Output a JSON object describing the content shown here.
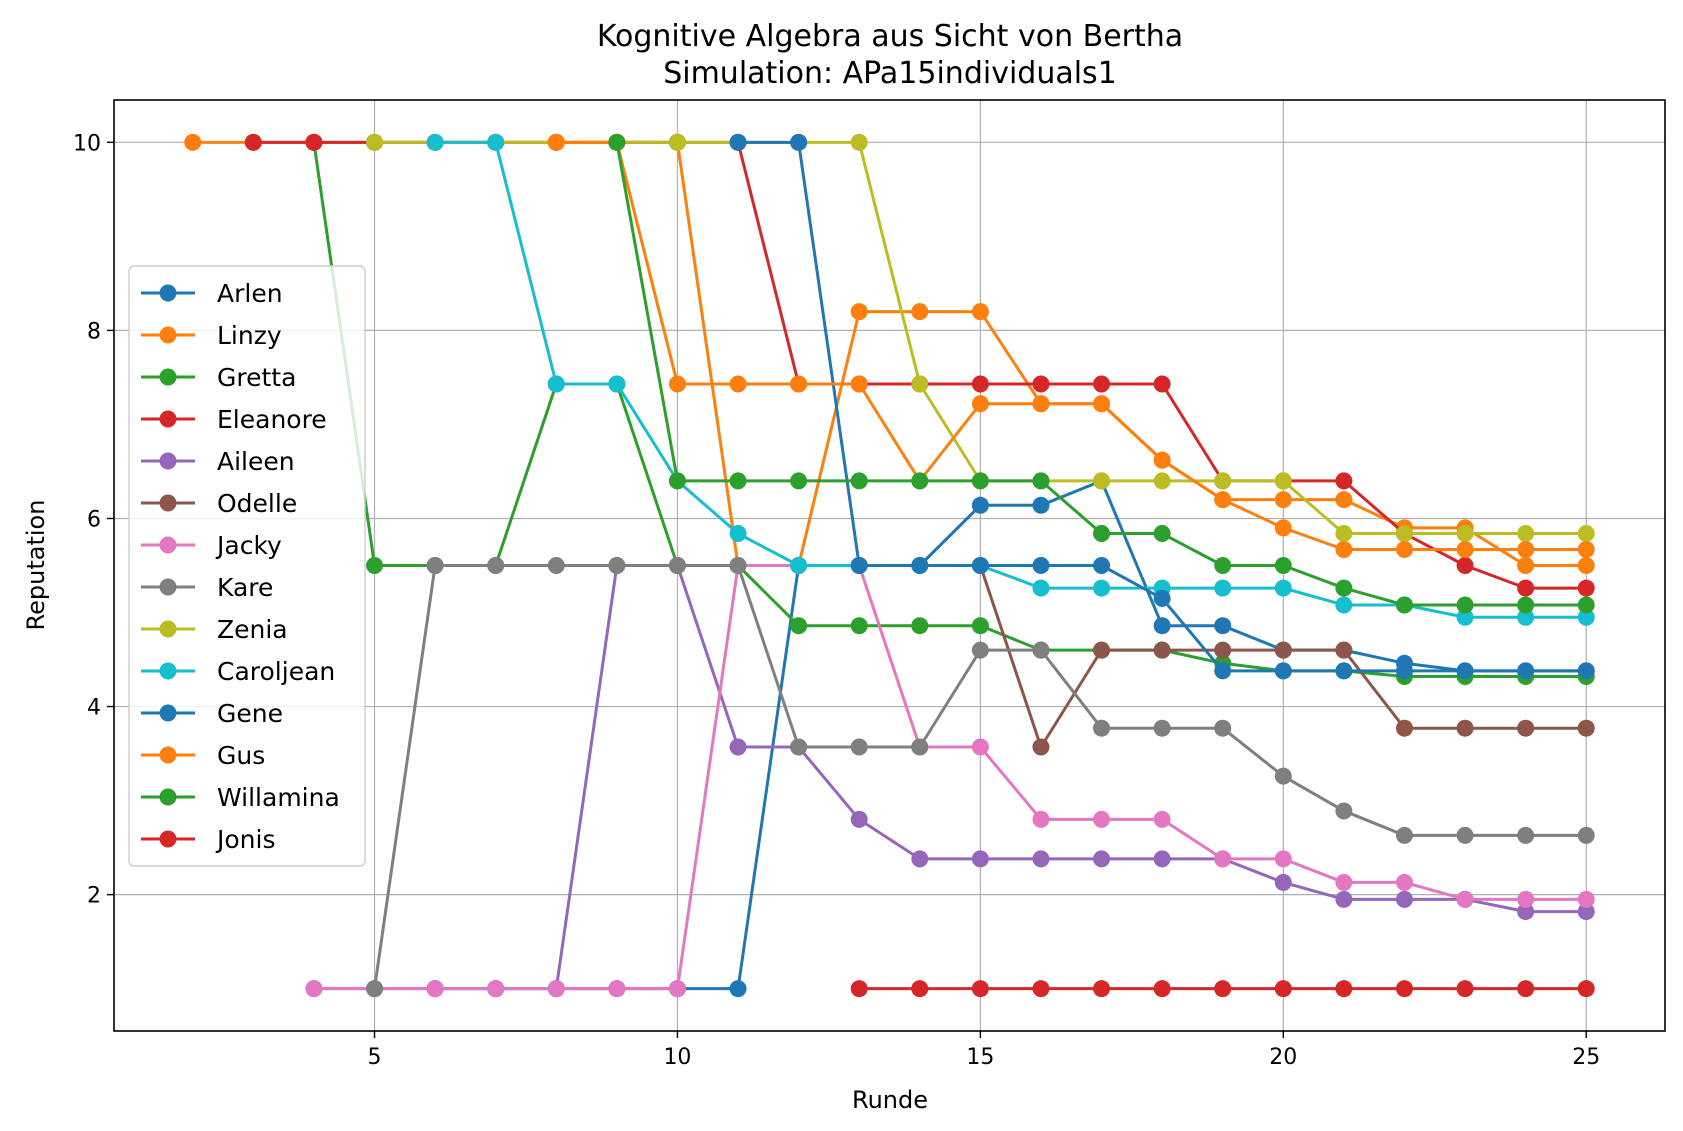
{
  "chart_data": {
    "type": "line",
    "title": "Kognitive Algebra aus Sicht von Bertha",
    "subtitle": "Simulation: APa15individuals1",
    "xlabel": "Runde",
    "ylabel": "Reputation",
    "xlim": [
      0.7,
      26.3
    ],
    "ylim": [
      0.55,
      10.45
    ],
    "xticks": [
      5,
      10,
      15,
      20,
      25
    ],
    "yticks": [
      2,
      4,
      6,
      8,
      10
    ],
    "grid": true,
    "legend_position": "center-left",
    "series": [
      {
        "name": "Arlen",
        "color": "#1f77b4",
        "points": [
          [
            6,
            1
          ],
          [
            7,
            1
          ],
          [
            8,
            1
          ],
          [
            9,
            1
          ],
          [
            10,
            1
          ],
          [
            11,
            1
          ],
          [
            12,
            5.5
          ],
          [
            13,
            5.5
          ],
          [
            14,
            5.5
          ],
          [
            15,
            6.14
          ],
          [
            16,
            6.14
          ],
          [
            17,
            6.4
          ],
          [
            18,
            4.86
          ],
          [
            19,
            4.86
          ],
          [
            20,
            4.6
          ],
          [
            21,
            4.6
          ],
          [
            22,
            4.46
          ],
          [
            23,
            4.38
          ],
          [
            24,
            4.38
          ],
          [
            25,
            4.38
          ]
        ]
      },
      {
        "name": "Linzy",
        "color": "#ff7f0e",
        "points": [
          [
            2,
            10
          ],
          [
            3,
            10
          ],
          [
            4,
            10
          ],
          [
            5,
            10
          ],
          [
            6,
            10
          ],
          [
            7,
            10
          ],
          [
            8,
            10
          ],
          [
            9,
            10
          ],
          [
            10,
            10
          ],
          [
            11,
            5.5
          ],
          [
            12,
            5.5
          ],
          [
            13,
            8.2
          ],
          [
            14,
            8.2
          ],
          [
            15,
            8.2
          ],
          [
            16,
            7.22
          ],
          [
            17,
            7.22
          ],
          [
            18,
            6.62
          ],
          [
            19,
            6.2
          ],
          [
            20,
            6.2
          ],
          [
            21,
            6.2
          ],
          [
            22,
            5.9
          ],
          [
            23,
            5.9
          ],
          [
            24,
            5.5
          ],
          [
            25,
            5.5
          ]
        ]
      },
      {
        "name": "Gretta",
        "color": "#2ca02c",
        "points": [
          [
            4,
            10
          ],
          [
            5,
            5.5
          ],
          [
            6,
            5.5
          ],
          [
            7,
            5.5
          ],
          [
            8,
            7.43
          ],
          [
            9,
            7.43
          ],
          [
            10,
            5.5
          ],
          [
            11,
            5.5
          ],
          [
            12,
            4.86
          ],
          [
            13,
            4.86
          ],
          [
            14,
            4.86
          ],
          [
            15,
            4.86
          ],
          [
            16,
            4.6
          ],
          [
            17,
            4.6
          ],
          [
            18,
            4.6
          ],
          [
            19,
            4.46
          ],
          [
            20,
            4.38
          ],
          [
            21,
            4.38
          ],
          [
            22,
            4.32
          ],
          [
            23,
            4.32
          ],
          [
            24,
            4.32
          ],
          [
            25,
            4.32
          ]
        ]
      },
      {
        "name": "Eleanore",
        "color": "#d62728",
        "points": [
          [
            3,
            10
          ],
          [
            4,
            10
          ],
          [
            5,
            10
          ],
          [
            6,
            10
          ],
          [
            7,
            10
          ],
          [
            8,
            10
          ],
          [
            9,
            10
          ],
          [
            10,
            10
          ],
          [
            11,
            10
          ],
          [
            12,
            7.43
          ],
          [
            13,
            7.43
          ],
          [
            14,
            7.43
          ],
          [
            15,
            7.43
          ],
          [
            16,
            7.43
          ],
          [
            17,
            7.43
          ],
          [
            18,
            7.43
          ],
          [
            19,
            6.4
          ],
          [
            20,
            6.4
          ],
          [
            21,
            6.4
          ],
          [
            22,
            5.84
          ],
          [
            23,
            5.5
          ],
          [
            24,
            5.26
          ],
          [
            25,
            5.26
          ]
        ]
      },
      {
        "name": "Aileen",
        "color": "#9467bd",
        "points": [
          [
            4,
            1
          ],
          [
            5,
            1
          ],
          [
            6,
            1
          ],
          [
            7,
            1
          ],
          [
            8,
            1
          ],
          [
            9,
            5.5
          ],
          [
            10,
            5.5
          ],
          [
            11,
            3.57
          ],
          [
            12,
            3.57
          ],
          [
            13,
            2.8
          ],
          [
            14,
            2.38
          ],
          [
            15,
            2.38
          ],
          [
            16,
            2.38
          ],
          [
            17,
            2.38
          ],
          [
            18,
            2.38
          ],
          [
            19,
            2.38
          ],
          [
            20,
            2.13
          ],
          [
            21,
            1.95
          ],
          [
            22,
            1.95
          ],
          [
            23,
            1.95
          ],
          [
            24,
            1.82
          ],
          [
            25,
            1.82
          ]
        ]
      },
      {
        "name": "Odelle",
        "color": "#8c564b",
        "points": [
          [
            15,
            5.5
          ],
          [
            16,
            3.57
          ],
          [
            17,
            4.6
          ],
          [
            18,
            4.6
          ],
          [
            19,
            4.6
          ],
          [
            20,
            4.6
          ],
          [
            21,
            4.6
          ],
          [
            22,
            3.77
          ],
          [
            23,
            3.77
          ],
          [
            24,
            3.77
          ],
          [
            25,
            3.77
          ]
        ]
      },
      {
        "name": "Jacky",
        "color": "#e377c2",
        "points": [
          [
            4,
            1
          ],
          [
            5,
            1
          ],
          [
            6,
            1
          ],
          [
            7,
            1
          ],
          [
            8,
            1
          ],
          [
            9,
            1
          ],
          [
            10,
            1
          ],
          [
            11,
            5.5
          ],
          [
            12,
            5.5
          ],
          [
            13,
            5.5
          ],
          [
            14,
            3.57
          ],
          [
            15,
            3.57
          ],
          [
            16,
            2.8
          ],
          [
            17,
            2.8
          ],
          [
            18,
            2.8
          ],
          [
            19,
            2.38
          ],
          [
            20,
            2.38
          ],
          [
            21,
            2.13
          ],
          [
            22,
            2.13
          ],
          [
            23,
            1.95
          ],
          [
            24,
            1.95
          ],
          [
            25,
            1.95
          ]
        ]
      },
      {
        "name": "Kare",
        "color": "#7f7f7f",
        "points": [
          [
            5,
            1
          ],
          [
            6,
            5.5
          ],
          [
            7,
            5.5
          ],
          [
            8,
            5.5
          ],
          [
            9,
            5.5
          ],
          [
            10,
            5.5
          ],
          [
            11,
            5.5
          ],
          [
            12,
            3.57
          ],
          [
            13,
            3.57
          ],
          [
            14,
            3.57
          ],
          [
            15,
            4.6
          ],
          [
            16,
            4.6
          ],
          [
            17,
            3.77
          ],
          [
            18,
            3.77
          ],
          [
            19,
            3.77
          ],
          [
            20,
            3.26
          ],
          [
            21,
            2.89
          ],
          [
            22,
            2.63
          ],
          [
            23,
            2.63
          ],
          [
            24,
            2.63
          ],
          [
            25,
            2.63
          ]
        ]
      },
      {
        "name": "Zenia",
        "color": "#bcbd22",
        "points": [
          [
            5,
            10
          ],
          [
            6,
            10
          ],
          [
            7,
            10
          ],
          [
            8,
            10
          ],
          [
            9,
            10
          ],
          [
            10,
            10
          ],
          [
            11,
            10
          ],
          [
            12,
            10
          ],
          [
            13,
            10
          ],
          [
            14,
            7.43
          ],
          [
            15,
            6.4
          ],
          [
            16,
            6.4
          ],
          [
            17,
            6.4
          ],
          [
            18,
            6.4
          ],
          [
            19,
            6.4
          ],
          [
            20,
            6.4
          ],
          [
            21,
            5.84
          ],
          [
            22,
            5.84
          ],
          [
            23,
            5.84
          ],
          [
            24,
            5.84
          ],
          [
            25,
            5.84
          ]
        ]
      },
      {
        "name": "Caroljean",
        "color": "#17becf",
        "points": [
          [
            6,
            10
          ],
          [
            7,
            10
          ],
          [
            8,
            7.43
          ],
          [
            9,
            7.43
          ],
          [
            10,
            6.4
          ],
          [
            11,
            5.84
          ],
          [
            12,
            5.5
          ],
          [
            13,
            5.5
          ],
          [
            14,
            5.5
          ],
          [
            15,
            5.5
          ],
          [
            16,
            5.26
          ],
          [
            17,
            5.26
          ],
          [
            18,
            5.26
          ],
          [
            19,
            5.26
          ],
          [
            20,
            5.26
          ],
          [
            21,
            5.08
          ],
          [
            22,
            5.08
          ],
          [
            23,
            4.95
          ],
          [
            24,
            4.95
          ],
          [
            25,
            4.95
          ]
        ]
      },
      {
        "name": "Gene",
        "color": "#1f77b4",
        "points": [
          [
            11,
            10
          ],
          [
            12,
            10
          ],
          [
            13,
            5.5
          ],
          [
            14,
            5.5
          ],
          [
            15,
            5.5
          ],
          [
            16,
            5.5
          ],
          [
            17,
            5.5
          ],
          [
            18,
            5.15
          ],
          [
            19,
            4.38
          ],
          [
            20,
            4.38
          ],
          [
            21,
            4.38
          ],
          [
            22,
            4.38
          ],
          [
            23,
            4.38
          ],
          [
            24,
            4.38
          ],
          [
            25,
            4.38
          ]
        ]
      },
      {
        "name": "Gus",
        "color": "#ff7f0e",
        "points": [
          [
            8,
            10
          ],
          [
            9,
            10
          ],
          [
            10,
            7.43
          ],
          [
            11,
            7.43
          ],
          [
            12,
            7.43
          ],
          [
            13,
            7.43
          ],
          [
            14,
            6.4
          ],
          [
            15,
            7.22
          ],
          [
            16,
            7.22
          ],
          [
            17,
            7.22
          ],
          [
            18,
            6.62
          ],
          [
            19,
            6.2
          ],
          [
            20,
            5.9
          ],
          [
            21,
            5.67
          ],
          [
            22,
            5.67
          ],
          [
            23,
            5.67
          ],
          [
            24,
            5.67
          ],
          [
            25,
            5.67
          ]
        ]
      },
      {
        "name": "Willamina",
        "color": "#2ca02c",
        "points": [
          [
            9,
            10
          ],
          [
            10,
            6.4
          ],
          [
            11,
            6.4
          ],
          [
            12,
            6.4
          ],
          [
            13,
            6.4
          ],
          [
            14,
            6.4
          ],
          [
            15,
            6.4
          ],
          [
            16,
            6.4
          ],
          [
            17,
            5.84
          ],
          [
            18,
            5.84
          ],
          [
            19,
            5.5
          ],
          [
            20,
            5.5
          ],
          [
            21,
            5.26
          ],
          [
            22,
            5.08
          ],
          [
            23,
            5.08
          ],
          [
            24,
            5.08
          ],
          [
            25,
            5.08
          ]
        ]
      },
      {
        "name": "Jonis",
        "color": "#d62728",
        "points": [
          [
            13,
            1
          ],
          [
            14,
            1
          ],
          [
            15,
            1
          ],
          [
            16,
            1
          ],
          [
            17,
            1
          ],
          [
            18,
            1
          ],
          [
            19,
            1
          ],
          [
            20,
            1
          ],
          [
            21,
            1
          ],
          [
            22,
            1
          ],
          [
            23,
            1
          ],
          [
            24,
            1
          ],
          [
            25,
            1
          ]
        ]
      }
    ]
  }
}
